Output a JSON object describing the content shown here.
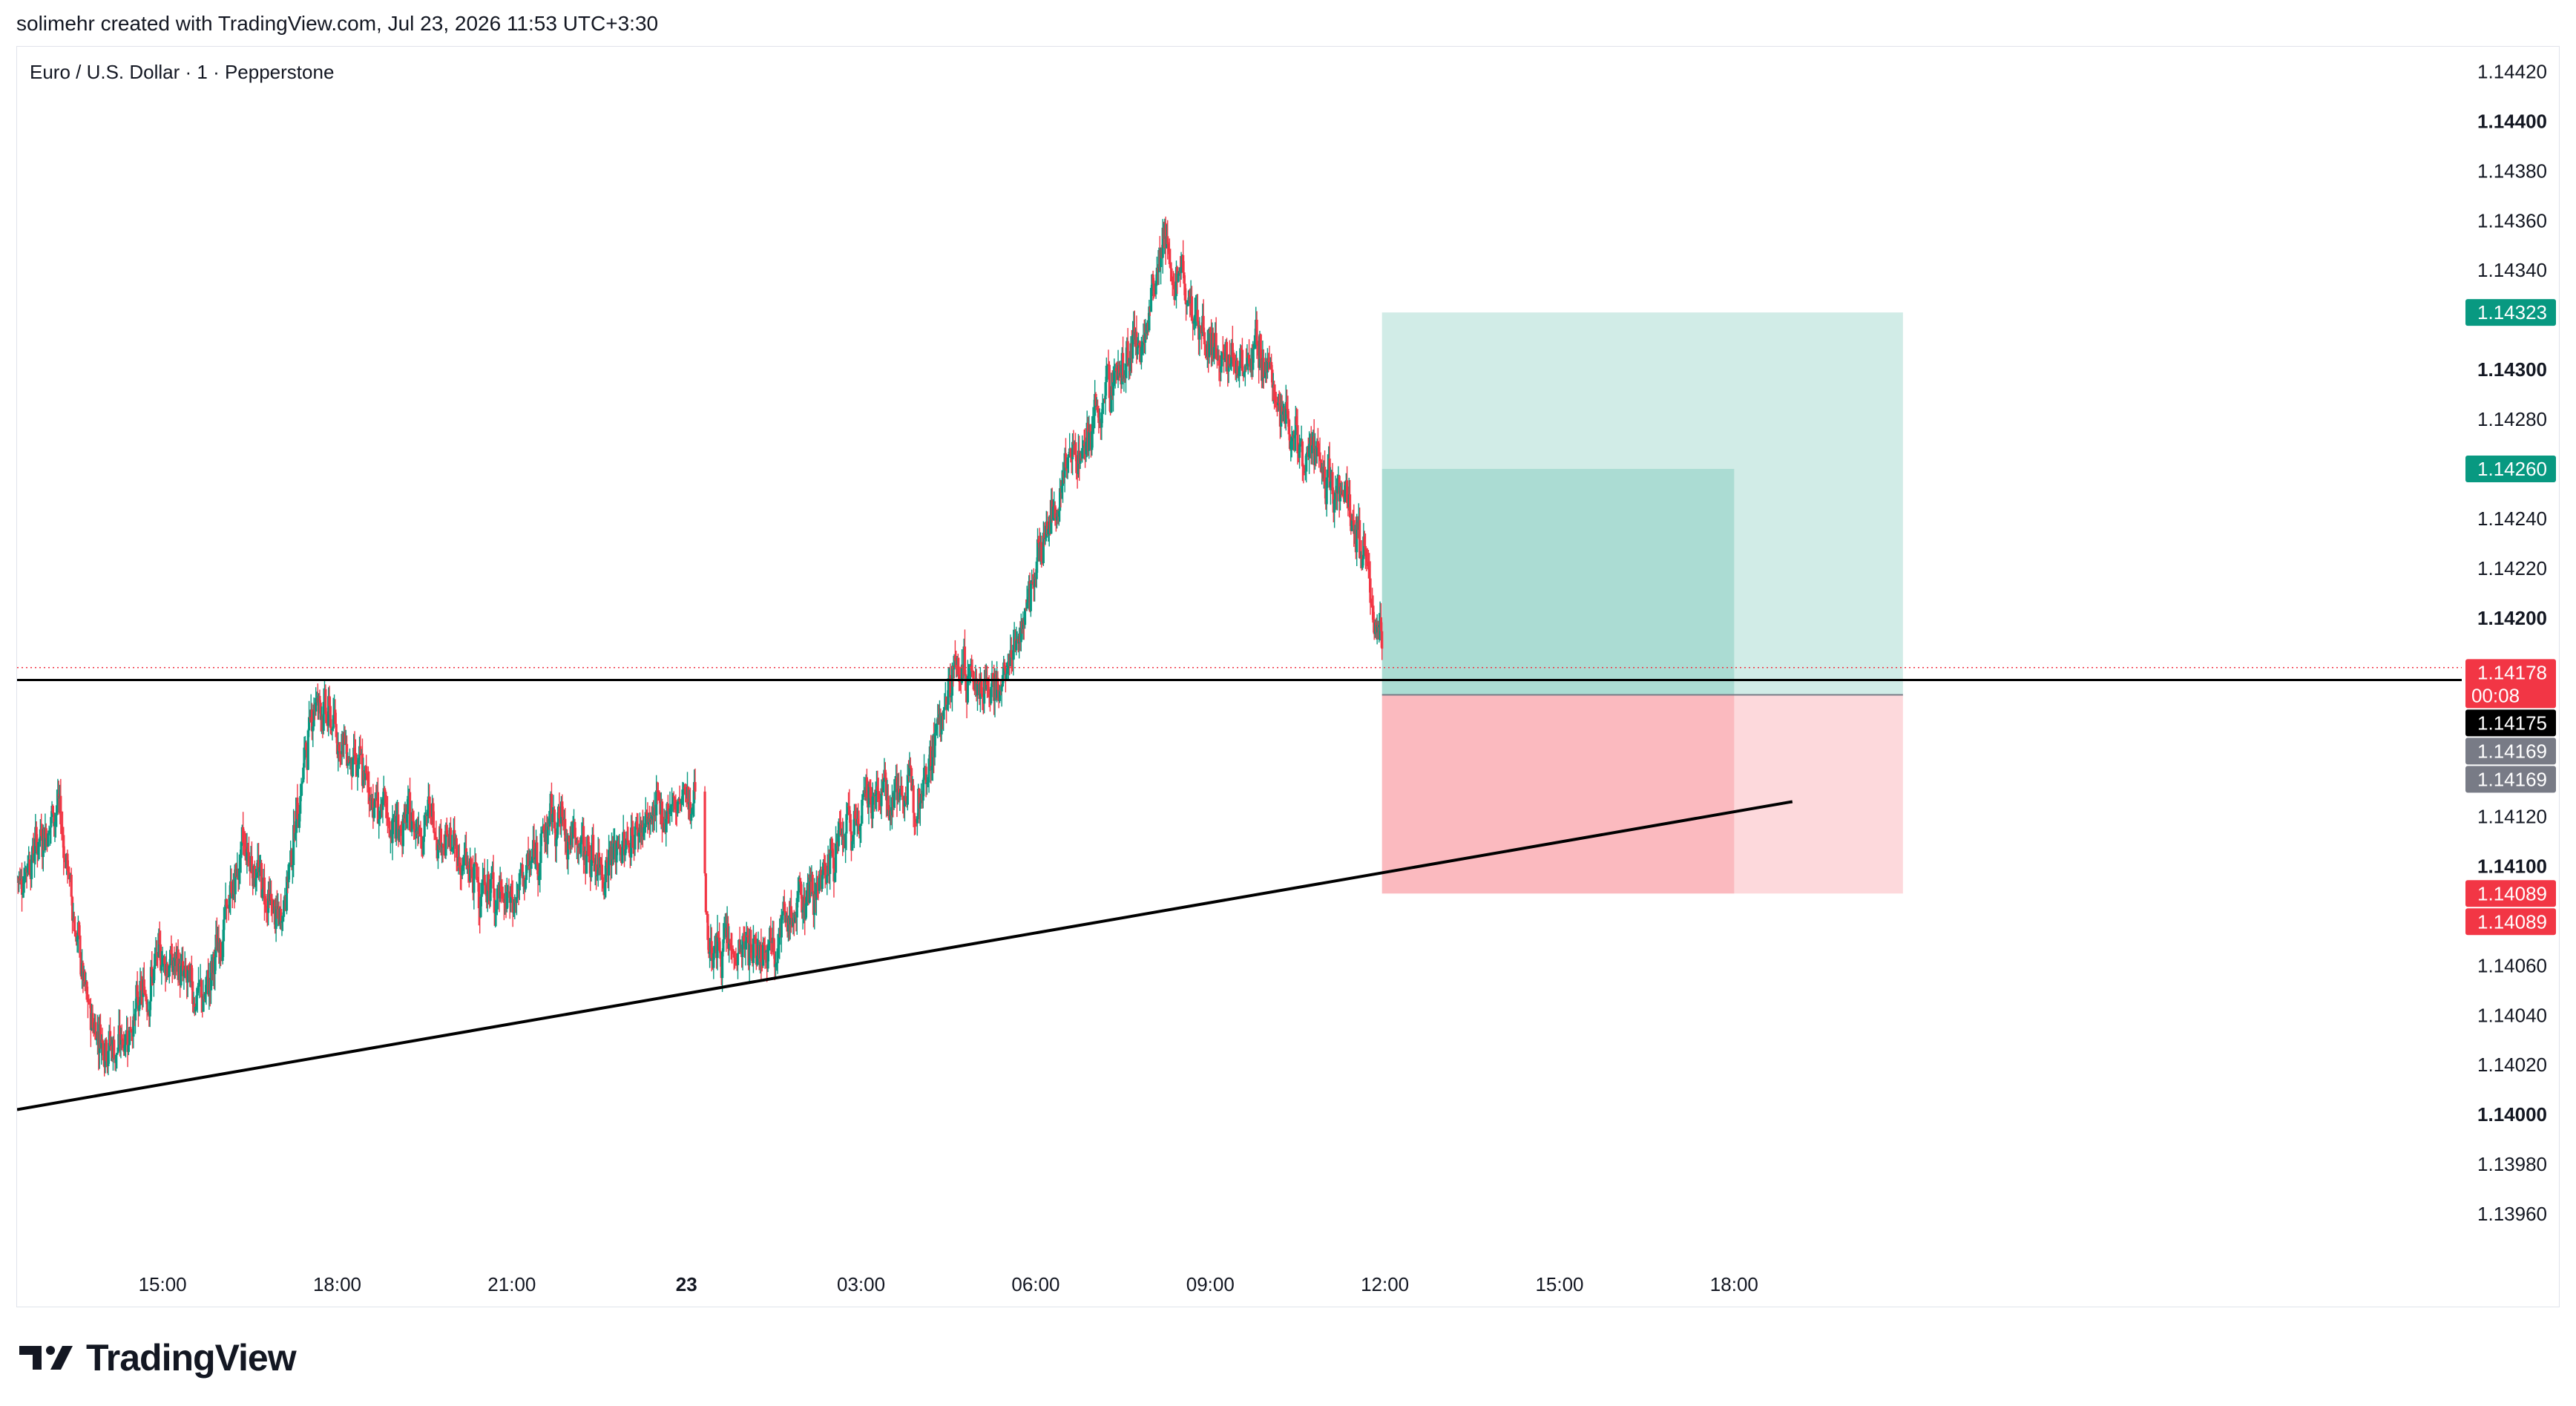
{
  "header": {
    "caption": "solimehr created with TradingView.com, Jul 23, 2026 11:53 UTC+3:30"
  },
  "legend": {
    "symbol": "Euro / U.S. Dollar · 1 · Pepperstone"
  },
  "brand": {
    "name": "TradingView",
    "logo_icon": "tradingview-logo-icon"
  },
  "colors": {
    "bull": "#089981",
    "bear": "#f23645",
    "profit_zone": "#089981",
    "loss_zone": "#f23645",
    "line": "#000000"
  },
  "chart_data": {
    "type": "candlestick",
    "ylim": [
      1.1394,
      1.1443
    ],
    "y_ticks": [
      {
        "value": 1.1442,
        "label": "1.14420",
        "bold": false
      },
      {
        "value": 1.144,
        "label": "1.14400",
        "bold": true
      },
      {
        "value": 1.1438,
        "label": "1.14380",
        "bold": false
      },
      {
        "value": 1.1436,
        "label": "1.14360",
        "bold": false
      },
      {
        "value": 1.1434,
        "label": "1.14340",
        "bold": false
      },
      {
        "value": 1.143,
        "label": "1.14300",
        "bold": true
      },
      {
        "value": 1.1428,
        "label": "1.14280",
        "bold": false
      },
      {
        "value": 1.1424,
        "label": "1.14240",
        "bold": false
      },
      {
        "value": 1.1422,
        "label": "1.14220",
        "bold": false
      },
      {
        "value": 1.142,
        "label": "1.14200",
        "bold": true
      },
      {
        "value": 1.1412,
        "label": "1.14120",
        "bold": false
      },
      {
        "value": 1.141,
        "label": "1.14100",
        "bold": true
      },
      {
        "value": 1.1406,
        "label": "1.14060",
        "bold": false
      },
      {
        "value": 1.1404,
        "label": "1.14040",
        "bold": false
      },
      {
        "value": 1.1402,
        "label": "1.14020",
        "bold": false
      },
      {
        "value": 1.14,
        "label": "1.14000",
        "bold": true
      },
      {
        "value": 1.1398,
        "label": "1.13980",
        "bold": false
      },
      {
        "value": 1.1396,
        "label": "1.13960",
        "bold": false
      }
    ],
    "x_start_hours": -23.5,
    "x_end_hours": 18.5,
    "x_ticks": [
      {
        "hours": -21,
        "label": "15:00",
        "bold": false
      },
      {
        "hours": -18,
        "label": "18:00",
        "bold": false
      },
      {
        "hours": -15,
        "label": "21:00",
        "bold": false
      },
      {
        "hours": -12,
        "label": "23",
        "bold": true
      },
      {
        "hours": -9,
        "label": "03:00",
        "bold": false
      },
      {
        "hours": -6,
        "label": "06:00",
        "bold": false
      },
      {
        "hours": -3,
        "label": "09:00",
        "bold": false
      },
      {
        "hours": 0,
        "label": "12:00",
        "bold": false
      },
      {
        "hours": 3,
        "label": "15:00",
        "bold": false
      },
      {
        "hours": 6,
        "label": "18:00",
        "bold": false
      }
    ],
    "price_path": [
      {
        "h": -23.5,
        "p": 1.14095
      },
      {
        "h": -22.8,
        "p": 1.14125
      },
      {
        "h": -22.3,
        "p": 1.1404
      },
      {
        "h": -21.8,
        "p": 1.14025
      },
      {
        "h": -21.0,
        "p": 1.14065
      },
      {
        "h": -20.3,
        "p": 1.14045
      },
      {
        "h": -19.6,
        "p": 1.1411
      },
      {
        "h": -19.0,
        "p": 1.14075
      },
      {
        "h": -18.4,
        "p": 1.1417
      },
      {
        "h": -17.8,
        "p": 1.14145
      },
      {
        "h": -17.1,
        "p": 1.14115
      },
      {
        "h": -16.4,
        "p": 1.1412
      },
      {
        "h": -15.7,
        "p": 1.14095
      },
      {
        "h": -15.0,
        "p": 1.14085
      },
      {
        "h": -14.3,
        "p": 1.1412
      },
      {
        "h": -13.5,
        "p": 1.141
      },
      {
        "h": -12.8,
        "p": 1.14115
      },
      {
        "h": -12.2,
        "p": 1.14125
      },
      {
        "h": -11.8,
        "p": 1.1413
      },
      {
        "h": -11.7,
        "p": 1.1407
      },
      {
        "h": -11.1,
        "p": 1.14065
      },
      {
        "h": -10.3,
        "p": 1.14075
      },
      {
        "h": -9.6,
        "p": 1.141
      },
      {
        "h": -8.8,
        "p": 1.1413
      },
      {
        "h": -8.0,
        "p": 1.1413
      },
      {
        "h": -7.4,
        "p": 1.1418
      },
      {
        "h": -6.6,
        "p": 1.1417
      },
      {
        "h": -6.0,
        "p": 1.1422
      },
      {
        "h": -5.5,
        "p": 1.1426
      },
      {
        "h": -5.0,
        "p": 1.1428
      },
      {
        "h": -4.6,
        "p": 1.143
      },
      {
        "h": -4.2,
        "p": 1.1431
      },
      {
        "h": -3.8,
        "p": 1.1435
      },
      {
        "h": -3.2,
        "p": 1.1432
      },
      {
        "h": -2.8,
        "p": 1.143
      },
      {
        "h": -2.2,
        "p": 1.1431
      },
      {
        "h": -1.7,
        "p": 1.1428
      },
      {
        "h": -1.2,
        "p": 1.1426
      },
      {
        "h": -0.7,
        "p": 1.1425
      },
      {
        "h": -0.3,
        "p": 1.1422
      },
      {
        "h": -0.05,
        "p": 1.1418
      }
    ],
    "current_price_line": {
      "value": 1.14178,
      "dotted_value": 1.1418
    },
    "horizontal_line": {
      "value": 1.14175
    },
    "trend_line": {
      "start": {
        "h": -23.5,
        "p": 1.14002
      },
      "end": {
        "h": 7.0,
        "p": 1.14126
      }
    },
    "positions": [
      {
        "type": "long-position",
        "start_h": -0.05,
        "end_h": 8.9,
        "entry": 1.14169,
        "target": 1.14323,
        "stop": 1.14089
      },
      {
        "type": "long-position",
        "start_h": -0.05,
        "end_h": 6.0,
        "entry": 1.14169,
        "target": 1.1426,
        "stop": 1.14089
      }
    ],
    "price_labels": [
      {
        "label": "1.14323",
        "value": 1.14323,
        "bg": "#089981",
        "color": "#ffffff"
      },
      {
        "label": "1.14260",
        "value": 1.1426,
        "bg": "#089981",
        "color": "#ffffff"
      },
      {
        "label": "1.14178",
        "value": 1.14178,
        "bg": "#f23645",
        "color": "#ffffff",
        "countdown": "00:08"
      },
      {
        "label": "1.14175",
        "value": 1.14175,
        "bg": "#000000",
        "color": "#ffffff"
      },
      {
        "label": "1.14169",
        "value": 1.14169,
        "bg": "#787b86",
        "color": "#ffffff"
      },
      {
        "label": "1.14169",
        "value": 1.14169,
        "bg": "#787b86",
        "color": "#ffffff"
      },
      {
        "label": "1.14089",
        "value": 1.14089,
        "bg": "#f23645",
        "color": "#ffffff"
      },
      {
        "label": "1.14089",
        "value": 1.14089,
        "bg": "#f23645",
        "color": "#ffffff"
      }
    ]
  }
}
